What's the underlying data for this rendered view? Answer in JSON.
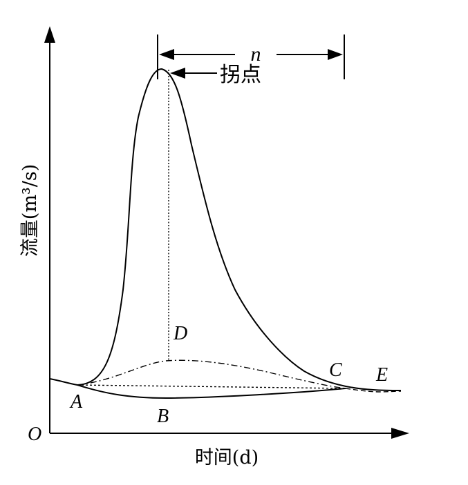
{
  "axes": {
    "origin_label": "O",
    "ylabel": "流量(m³/s)",
    "xlabel": "时间(d)"
  },
  "annotations": {
    "peak_label": "拐点",
    "interval_label": "n"
  },
  "points": {
    "A": "A",
    "B": "B",
    "C": "C",
    "D": "D",
    "E": "E"
  }
}
